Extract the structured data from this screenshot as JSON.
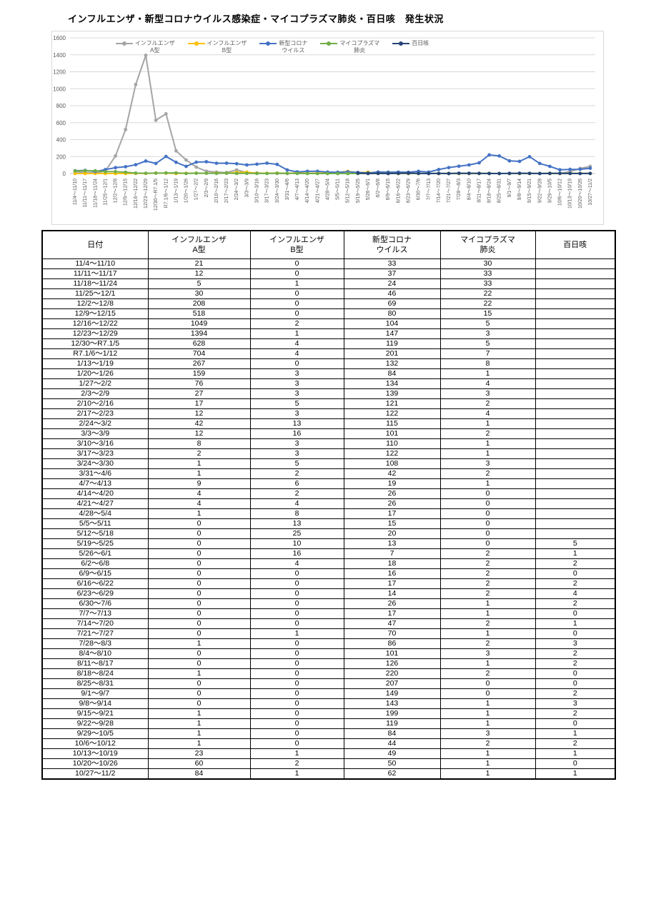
{
  "title": "インフルエンザ・新型コロナウイルス感染症・マイコプラズマ肺炎・百日咳　発生状況",
  "chart_data": {
    "type": "line",
    "title": "",
    "xlabel": "",
    "ylabel": "",
    "ylim": [
      0,
      1600
    ],
    "ytick_interval": 200,
    "grid": true,
    "legend_position": "top",
    "categories": [
      "11/4～11/10",
      "11/11～11/17",
      "11/18～11/24",
      "11/25～12/1",
      "12/2～12/8",
      "12/9～12/15",
      "12/16～12/22",
      "12/23～12/29",
      "12/30～R7.1/5",
      "R7.1/6～1/12",
      "1/13～1/19",
      "1/20～1/26",
      "1/27～2/2",
      "2/3～2/9",
      "2/10～2/16",
      "2/17～2/23",
      "2/24～3/2",
      "3/3～3/9",
      "3/10～3/16",
      "3/17～3/23",
      "3/24～3/30",
      "3/31～4/6",
      "4/7～4/13",
      "4/14～4/20",
      "4/21～4/27",
      "4/28～5/4",
      "5/5～5/11",
      "5/12～5/18",
      "5/19～5/25",
      "5/26～6/1",
      "6/2～6/8",
      "6/9～6/15",
      "6/16～6/22",
      "6/23～6/29",
      "6/30～7/6",
      "7/7～7/13",
      "7/14～7/20",
      "7/21～7/27",
      "7/28～8/3",
      "8/4～8/10",
      "8/11～8/17",
      "8/18～8/24",
      "8/25～8/31",
      "9/1～9/7",
      "9/8～9/14",
      "9/15～9/21",
      "9/22～9/28",
      "9/29～10/5",
      "10/6～10/12",
      "10/13～10/19",
      "10/20～10/26",
      "10/27～11/2"
    ],
    "series": [
      {
        "name": "インフルエンザ\nA型",
        "color": "#a5a5a5",
        "values": [
          21,
          12,
          5,
          30,
          208,
          518,
          1049,
          1394,
          628,
          704,
          267,
          159,
          76,
          27,
          17,
          12,
          42,
          12,
          8,
          2,
          1,
          1,
          9,
          4,
          4,
          1,
          0,
          0,
          0,
          0,
          0,
          0,
          0,
          0,
          0,
          0,
          0,
          0,
          1,
          0,
          0,
          1,
          0,
          0,
          0,
          1,
          1,
          1,
          1,
          23,
          60,
          84
        ]
      },
      {
        "name": "インフルエンザ\nB型",
        "color": "#ffc000",
        "values": [
          0,
          0,
          1,
          0,
          0,
          0,
          2,
          1,
          4,
          4,
          0,
          3,
          3,
          3,
          5,
          3,
          13,
          16,
          3,
          3,
          5,
          2,
          6,
          2,
          4,
          8,
          13,
          25,
          10,
          16,
          4,
          0,
          0,
          0,
          0,
          0,
          0,
          1,
          0,
          0,
          0,
          0,
          0,
          0,
          0,
          0,
          0,
          0,
          0,
          1,
          2,
          1
        ]
      },
      {
        "name": "新型コロナ\nウイルス",
        "color": "#4472c4",
        "values": [
          33,
          37,
          24,
          46,
          69,
          80,
          104,
          147,
          119,
          201,
          132,
          84,
          134,
          139,
          121,
          122,
          115,
          101,
          110,
          122,
          108,
          42,
          19,
          26,
          26,
          17,
          15,
          20,
          13,
          7,
          18,
          16,
          17,
          14,
          26,
          17,
          47,
          70,
          86,
          101,
          126,
          220,
          207,
          149,
          143,
          199,
          119,
          84,
          44,
          49,
          50,
          62
        ]
      },
      {
        "name": "マイコプラズマ\n肺炎",
        "color": "#70ad47",
        "values": [
          30,
          33,
          33,
          22,
          22,
          15,
          5,
          3,
          5,
          7,
          8,
          1,
          4,
          3,
          2,
          4,
          1,
          2,
          1,
          1,
          3,
          2,
          1,
          0,
          0,
          0,
          0,
          0,
          0,
          2,
          2,
          2,
          2,
          2,
          1,
          1,
          2,
          1,
          2,
          3,
          1,
          2,
          0,
          0,
          1,
          1,
          1,
          3,
          2,
          1,
          1,
          1
        ]
      },
      {
        "name": "百日咳",
        "color": "#264478",
        "values": [
          null,
          null,
          null,
          null,
          null,
          null,
          null,
          null,
          null,
          null,
          null,
          null,
          null,
          null,
          null,
          null,
          null,
          null,
          null,
          null,
          null,
          null,
          null,
          null,
          null,
          null,
          null,
          null,
          5,
          1,
          2,
          0,
          2,
          4,
          2,
          0,
          1,
          0,
          3,
          2,
          2,
          0,
          0,
          2,
          3,
          2,
          0,
          1,
          2,
          1,
          0,
          1
        ]
      }
    ]
  },
  "table": {
    "headers": [
      "日付",
      "インフルエンザ\nA型",
      "インフルエンザ\nB型",
      "新型コロナ\nウイルス",
      "マイコプラズマ\n肺炎",
      "百日咳"
    ],
    "rows": [
      [
        "11/4～11/10",
        "21",
        "0",
        "33",
        "30",
        ""
      ],
      [
        "11/11～11/17",
        "12",
        "0",
        "37",
        "33",
        ""
      ],
      [
        "11/18～11/24",
        "5",
        "1",
        "24",
        "33",
        ""
      ],
      [
        "11/25～12/1",
        "30",
        "0",
        "46",
        "22",
        ""
      ],
      [
        "12/2～12/8",
        "208",
        "0",
        "69",
        "22",
        ""
      ],
      [
        "12/9～12/15",
        "518",
        "0",
        "80",
        "15",
        ""
      ],
      [
        "12/16～12/22",
        "1049",
        "2",
        "104",
        "5",
        ""
      ],
      [
        "12/23～12/29",
        "1394",
        "1",
        "147",
        "3",
        ""
      ],
      [
        "12/30～R7.1/5",
        "628",
        "4",
        "119",
        "5",
        ""
      ],
      [
        "R7.1/6～1/12",
        "704",
        "4",
        "201",
        "7",
        ""
      ],
      [
        "1/13～1/19",
        "267",
        "0",
        "132",
        "8",
        ""
      ],
      [
        "1/20～1/26",
        "159",
        "3",
        "84",
        "1",
        ""
      ],
      [
        "1/27～2/2",
        "76",
        "3",
        "134",
        "4",
        ""
      ],
      [
        "2/3～2/9",
        "27",
        "3",
        "139",
        "3",
        ""
      ],
      [
        "2/10～2/16",
        "17",
        "5",
        "121",
        "2",
        ""
      ],
      [
        "2/17～2/23",
        "12",
        "3",
        "122",
        "4",
        ""
      ],
      [
        "2/24～3/2",
        "42",
        "13",
        "115",
        "1",
        ""
      ],
      [
        "3/3～3/9",
        "12",
        "16",
        "101",
        "2",
        ""
      ],
      [
        "3/10～3/16",
        "8",
        "3",
        "110",
        "1",
        ""
      ],
      [
        "3/17～3/23",
        "2",
        "3",
        "122",
        "1",
        ""
      ],
      [
        "3/24～3/30",
        "1",
        "5",
        "108",
        "3",
        ""
      ],
      [
        "3/31～4/6",
        "1",
        "2",
        "42",
        "2",
        ""
      ],
      [
        "4/7～4/13",
        "9",
        "6",
        "19",
        "1",
        ""
      ],
      [
        "4/14～4/20",
        "4",
        "2",
        "26",
        "0",
        ""
      ],
      [
        "4/21～4/27",
        "4",
        "4",
        "26",
        "0",
        ""
      ],
      [
        "4/28～5/4",
        "1",
        "8",
        "17",
        "0",
        ""
      ],
      [
        "5/5～5/11",
        "0",
        "13",
        "15",
        "0",
        ""
      ],
      [
        "5/12～5/18",
        "0",
        "25",
        "20",
        "0",
        ""
      ],
      [
        "5/19～5/25",
        "0",
        "10",
        "13",
        "0",
        "5"
      ],
      [
        "5/26～6/1",
        "0",
        "16",
        "7",
        "2",
        "1"
      ],
      [
        "6/2～6/8",
        "0",
        "4",
        "18",
        "2",
        "2"
      ],
      [
        "6/9～6/15",
        "0",
        "0",
        "16",
        "2",
        "0"
      ],
      [
        "6/16～6/22",
        "0",
        "0",
        "17",
        "2",
        "2"
      ],
      [
        "6/23～6/29",
        "0",
        "0",
        "14",
        "2",
        "4"
      ],
      [
        "6/30～7/6",
        "0",
        "0",
        "26",
        "1",
        "2"
      ],
      [
        "7/7～7/13",
        "0",
        "0",
        "17",
        "1",
        "0"
      ],
      [
        "7/14～7/20",
        "0",
        "0",
        "47",
        "2",
        "1"
      ],
      [
        "7/21～7/27",
        "0",
        "1",
        "70",
        "1",
        "0"
      ],
      [
        "7/28～8/3",
        "1",
        "0",
        "86",
        "2",
        "3"
      ],
      [
        "8/4～8/10",
        "0",
        "0",
        "101",
        "3",
        "2"
      ],
      [
        "8/11～8/17",
        "0",
        "0",
        "126",
        "1",
        "2"
      ],
      [
        "8/18～8/24",
        "1",
        "0",
        "220",
        "2",
        "0"
      ],
      [
        "8/25～8/31",
        "0",
        "0",
        "207",
        "0",
        "0"
      ],
      [
        "9/1～9/7",
        "0",
        "0",
        "149",
        "0",
        "2"
      ],
      [
        "9/8～9/14",
        "0",
        "0",
        "143",
        "1",
        "3"
      ],
      [
        "9/15～9/21",
        "1",
        "0",
        "199",
        "1",
        "2"
      ],
      [
        "9/22～9/28",
        "1",
        "0",
        "119",
        "1",
        "0"
      ],
      [
        "9/29～10/5",
        "1",
        "0",
        "84",
        "3",
        "1"
      ],
      [
        "10/6～10/12",
        "1",
        "0",
        "44",
        "2",
        "2"
      ],
      [
        "10/13～10/19",
        "23",
        "1",
        "49",
        "1",
        "1"
      ],
      [
        "10/20～10/26",
        "60",
        "2",
        "50",
        "1",
        "0"
      ],
      [
        "10/27～11/2",
        "84",
        "1",
        "62",
        "1",
        "1"
      ]
    ]
  }
}
